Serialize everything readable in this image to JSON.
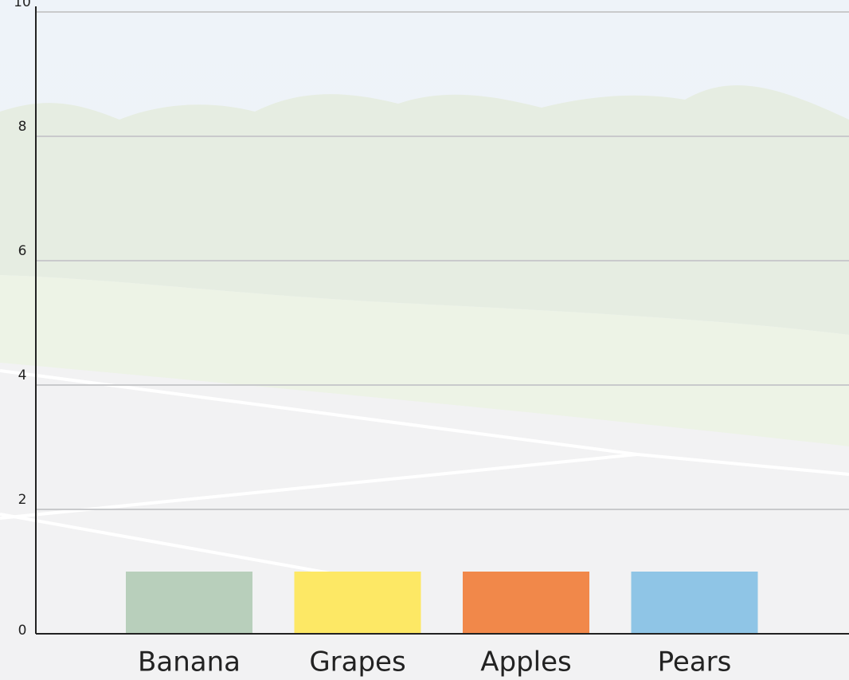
{
  "chart_data": {
    "type": "bar",
    "categories": [
      "Banana",
      "Grapes",
      "Apples",
      "Pears"
    ],
    "values": [
      1,
      1,
      1,
      1
    ],
    "colors": [
      "#b8cfbb",
      "#fde865",
      "#f1884a",
      "#8fc5e6"
    ],
    "ylim": [
      0,
      10
    ],
    "yticks": [
      0,
      2,
      4,
      6,
      8,
      10
    ],
    "grid": true
  }
}
